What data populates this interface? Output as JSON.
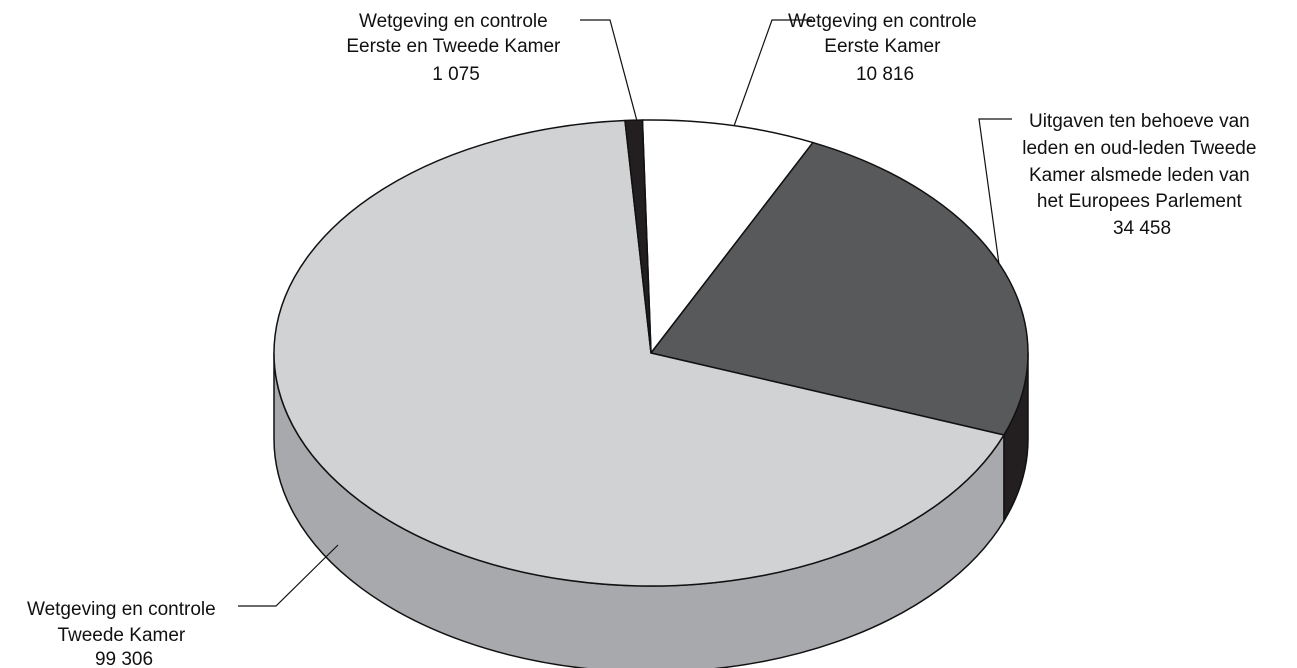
{
  "chart_data": {
    "type": "pie",
    "style": "3d-exploded-none",
    "slices": [
      {
        "lines": [
          "Wetgeving en controle",
          "Eerste Kamer",
          "10 816"
        ],
        "value": 10816,
        "color": "#ffffff",
        "side_color": "#e8e8e8"
      },
      {
        "lines": [
          "Uitgaven ten behoeve van",
          "leden en oud-leden Tweede",
          "Kamer alsmede leden van",
          "het Europees Parlement",
          "34 458"
        ],
        "value": 34458,
        "color": "#58595b",
        "side_color": "#231f20"
      },
      {
        "lines": [
          "Wetgeving en controle",
          "Tweede Kamer",
          "99 306"
        ],
        "value": 99306,
        "color": "#d1d2d4",
        "side_color": "#a7a9ac"
      },
      {
        "lines": [
          "Wetgeving en controle",
          "Eerste en Tweede Kamer",
          "1 075"
        ],
        "value": 1075,
        "color": "#231f20",
        "side_color": "#231f20"
      }
    ],
    "legend": "none"
  }
}
